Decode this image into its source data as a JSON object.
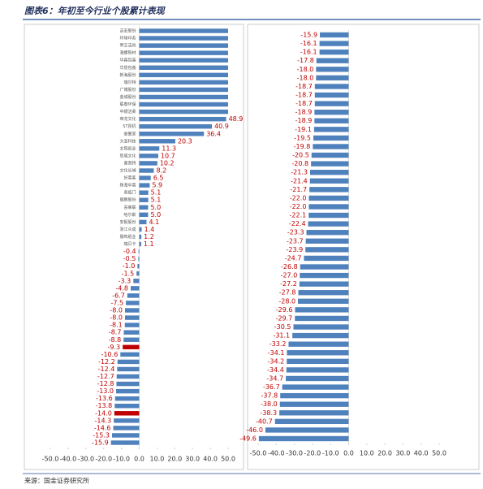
{
  "title": "图表6：年初至今行业个股累计表现",
  "source": "来源：国金证券研究所",
  "chart_data": [
    {
      "type": "hbar",
      "color": "#4f81bd",
      "highlight_color": "#c00000",
      "highlight": [
        43,
        52
      ],
      "categories": [
        "吉宏股份",
        "环球印务",
        "帝王洁具",
        "海螺新材",
        "华森包装",
        "华揽包装",
        "新海股份",
        "瑞尔特",
        "广博股份",
        "金城股份",
        "联泰环保",
        "中顺洁柔",
        "帝龙文化",
        "ST昆机",
        "豪翼家",
        "大亚科技",
        "太阳纸业",
        "挚威文化",
        "惠而特",
        "文化长城",
        "好莱客",
        "珠海中富",
        "喜临门",
        "丽鹏股份",
        "喜莱联",
        "哈尔斯",
        "安妮股份",
        "浙江众成",
        "晨鸣纸业",
        "瑞贝卡",
        null,
        null,
        null,
        null,
        null,
        null,
        null,
        null,
        null,
        null,
        null,
        null,
        null,
        null,
        null,
        null,
        null,
        null,
        null,
        null,
        null,
        null,
        null,
        null,
        null,
        null,
        null
      ],
      "values": [
        50,
        50,
        50,
        50,
        50,
        50,
        50,
        50,
        50,
        50,
        50,
        50,
        48.9,
        40.9,
        36.4,
        20.3,
        11.3,
        10.7,
        10.2,
        8.2,
        6.5,
        5.9,
        5.1,
        5.1,
        5.0,
        5.0,
        4.1,
        1.4,
        1.2,
        1.1,
        -0.4,
        -0.5,
        -1.0,
        -1.5,
        -3.3,
        -4.8,
        -6.7,
        -7.5,
        -8.0,
        -8.0,
        -8.1,
        -8.7,
        -8.8,
        -9.3,
        -10.6,
        -12.2,
        -12.4,
        -12.7,
        -12.8,
        -13.0,
        -13.6,
        -13.8,
        -14.0,
        -14.3,
        -14.6,
        -15.3,
        -15.9
      ],
      "value_labels": [
        null,
        null,
        null,
        null,
        null,
        null,
        null,
        null,
        null,
        null,
        null,
        null,
        "48.9",
        "40.9",
        "36.4",
        "20.3",
        "11.3",
        "10.7",
        "10.2",
        "8.2",
        "6.5",
        "5.9",
        "5.1",
        "5.1",
        "5.0",
        "5.0",
        "4.1",
        "1.4",
        "1.2",
        "1.1",
        "-0.4",
        "-0.5",
        "-1.0",
        "-1.5",
        "-3.3",
        "-4.8",
        "-6.7",
        "-7.5",
        "-8.0",
        "-8.0",
        "-8.1",
        "-8.7",
        "-8.8",
        "-9.3",
        "-10.6",
        "-12.2",
        "-12.4",
        "-12.7",
        "-12.8",
        "-13.0",
        "-13.6",
        "-13.8",
        "-14.0",
        "-14.3",
        "-14.6",
        "-15.3",
        "-15.9"
      ],
      "xlim": [
        -50,
        50
      ],
      "xticks": [
        {
          "value": -50,
          "label": "-50.0"
        },
        {
          "value": -40,
          "label": "-40.0"
        },
        {
          "value": -30,
          "label": "-30.0"
        },
        {
          "value": -20,
          "label": "-20.0"
        },
        {
          "value": -10,
          "label": "-10.0"
        },
        {
          "value": 0,
          "label": "0.0"
        },
        {
          "value": 10,
          "label": "10.0"
        },
        {
          "value": 20,
          "label": "20.0"
        },
        {
          "value": 30,
          "label": "30.0"
        },
        {
          "value": 40,
          "label": "40.0"
        },
        {
          "value": 50,
          "label": "50.0"
        }
      ]
    },
    {
      "type": "hbar",
      "color": "#4f81bd",
      "categories": [
        null,
        null,
        null,
        null,
        null,
        null,
        null,
        null,
        null,
        null,
        null,
        null,
        null,
        null,
        null,
        null,
        null,
        null,
        null,
        null,
        null,
        null,
        null,
        null,
        null,
        null,
        null,
        null,
        null,
        null,
        null,
        null,
        null,
        null,
        null,
        null,
        null,
        null,
        null,
        null,
        null,
        null,
        null,
        null,
        null,
        null,
        null,
        null
      ],
      "values": [
        -15.9,
        -16.1,
        -16.1,
        -17.8,
        -18.0,
        -18.0,
        -18.7,
        -18.7,
        -18.7,
        -18.9,
        -18.9,
        -19.1,
        -19.5,
        -19.8,
        -20.5,
        -20.8,
        -21.3,
        -21.4,
        -21.7,
        -22.0,
        -22.0,
        -22.1,
        -22.4,
        -23.3,
        -23.7,
        -23.9,
        -24.7,
        -26.8,
        -27.0,
        -27.2,
        -27.8,
        -28.0,
        -29.6,
        -29.7,
        -30.5,
        -31.1,
        -33.2,
        -34.1,
        -34.2,
        -34.4,
        -34.7,
        -36.7,
        -37.8,
        -38.0,
        -38.3,
        -40.7,
        -46.0,
        -49.6
      ],
      "value_labels": [
        "-15.9",
        "-16.1",
        "-16.1",
        "-17.8",
        "-18.0",
        "-18.0",
        "-18.7",
        "-18.7",
        "-18.7",
        "-18.9",
        "-18.9",
        "-19.1",
        "-19.5",
        "-19.8",
        "-20.5",
        "-20.8",
        "-21.3",
        "-21.4",
        "-21.7",
        "-22.0",
        "-22.0",
        "-22.1",
        "-22.4",
        "-23.3",
        "-23.7",
        "-23.9",
        "-24.7",
        "-26.8",
        "-27.0",
        "-27.2",
        "-27.8",
        "-28.0",
        "-29.6",
        "-29.7",
        "-30.5",
        "-31.1",
        "-33.2",
        "-34.1",
        "-34.2",
        "-34.4",
        "-34.7",
        "-36.7",
        "-37.8",
        "-38.0",
        "-38.3",
        "-40.7",
        "-46.0",
        "-49.6"
      ],
      "xlim": [
        -50,
        50
      ],
      "xticks": [
        {
          "value": -50,
          "label": "-50.0"
        },
        {
          "value": -40,
          "label": "-40.0"
        },
        {
          "value": -30,
          "label": "-30.0"
        },
        {
          "value": -20,
          "label": "-20.0"
        },
        {
          "value": -10,
          "label": "-10.0"
        },
        {
          "value": 0,
          "label": "0.0"
        },
        {
          "value": 10,
          "label": "10.0"
        },
        {
          "value": 20,
          "label": "20.0"
        },
        {
          "value": 30,
          "label": "30.0"
        },
        {
          "value": 40,
          "label": "40.0"
        },
        {
          "value": 50,
          "label": "50.0"
        }
      ]
    }
  ]
}
